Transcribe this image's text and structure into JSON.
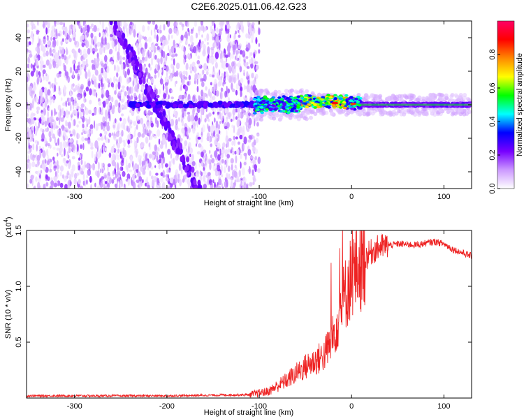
{
  "title": "C2E6.2025.011.06.42.G23",
  "chart_data": [
    {
      "type": "heatmap",
      "xlabel": "Height of straight line (km)",
      "ylabel": "Frequency (Hz)",
      "xlim": [
        -352,
        130
      ],
      "ylim": [
        -50,
        50
      ],
      "xticks": [
        -300,
        -200,
        -100,
        0,
        100
      ],
      "yticks": [
        -40,
        -20,
        0,
        20,
        40
      ],
      "colorbar": {
        "label": "Normalized spectral amplitude",
        "range": [
          0,
          1
        ],
        "ticks": [
          "0.0",
          "0.2",
          "0.4",
          "0.6",
          "0.8"
        ],
        "tick_values": [
          0,
          0.2,
          0.4,
          0.6,
          0.8
        ],
        "colors": [
          "#ffffff",
          "#cc99ff",
          "#7700ff",
          "#0000ff",
          "#00ffff",
          "#00ff00",
          "#ffff00",
          "#ff8800",
          "#ff0000",
          "#ff0066"
        ]
      },
      "features": {
        "noise_region_x": [
          -352,
          -100
        ],
        "carrier_frequency": 0,
        "carrier_start_x": -240,
        "band_start_x": -105
      }
    },
    {
      "type": "line",
      "xlabel": "Height of straight line (km)",
      "ylabel": "SNR (10 * v/v)",
      "multiplier": "(x10",
      "multiplier_exp": "4",
      "multiplier_close": ")",
      "xlim": [
        -352,
        130
      ],
      "ylim": [
        0,
        1.5
      ],
      "xticks": [
        -300,
        -200,
        -100,
        0,
        100
      ],
      "yticks": [
        0.5,
        1.0,
        1.5
      ],
      "ytick_labels": [
        "0.5",
        "1.0",
        "1.5"
      ],
      "color": "#ee2222",
      "profile_x": [
        -352,
        -200,
        -110,
        -90,
        -70,
        -50,
        -30,
        -20,
        -10,
        0,
        10,
        20,
        30,
        50,
        70,
        90,
        100,
        110,
        130
      ],
      "profile_y": [
        0.02,
        0.02,
        0.03,
        0.06,
        0.16,
        0.28,
        0.38,
        0.55,
        0.85,
        1.1,
        1.2,
        1.3,
        1.35,
        1.38,
        1.37,
        1.4,
        1.38,
        1.33,
        1.27
      ]
    }
  ]
}
